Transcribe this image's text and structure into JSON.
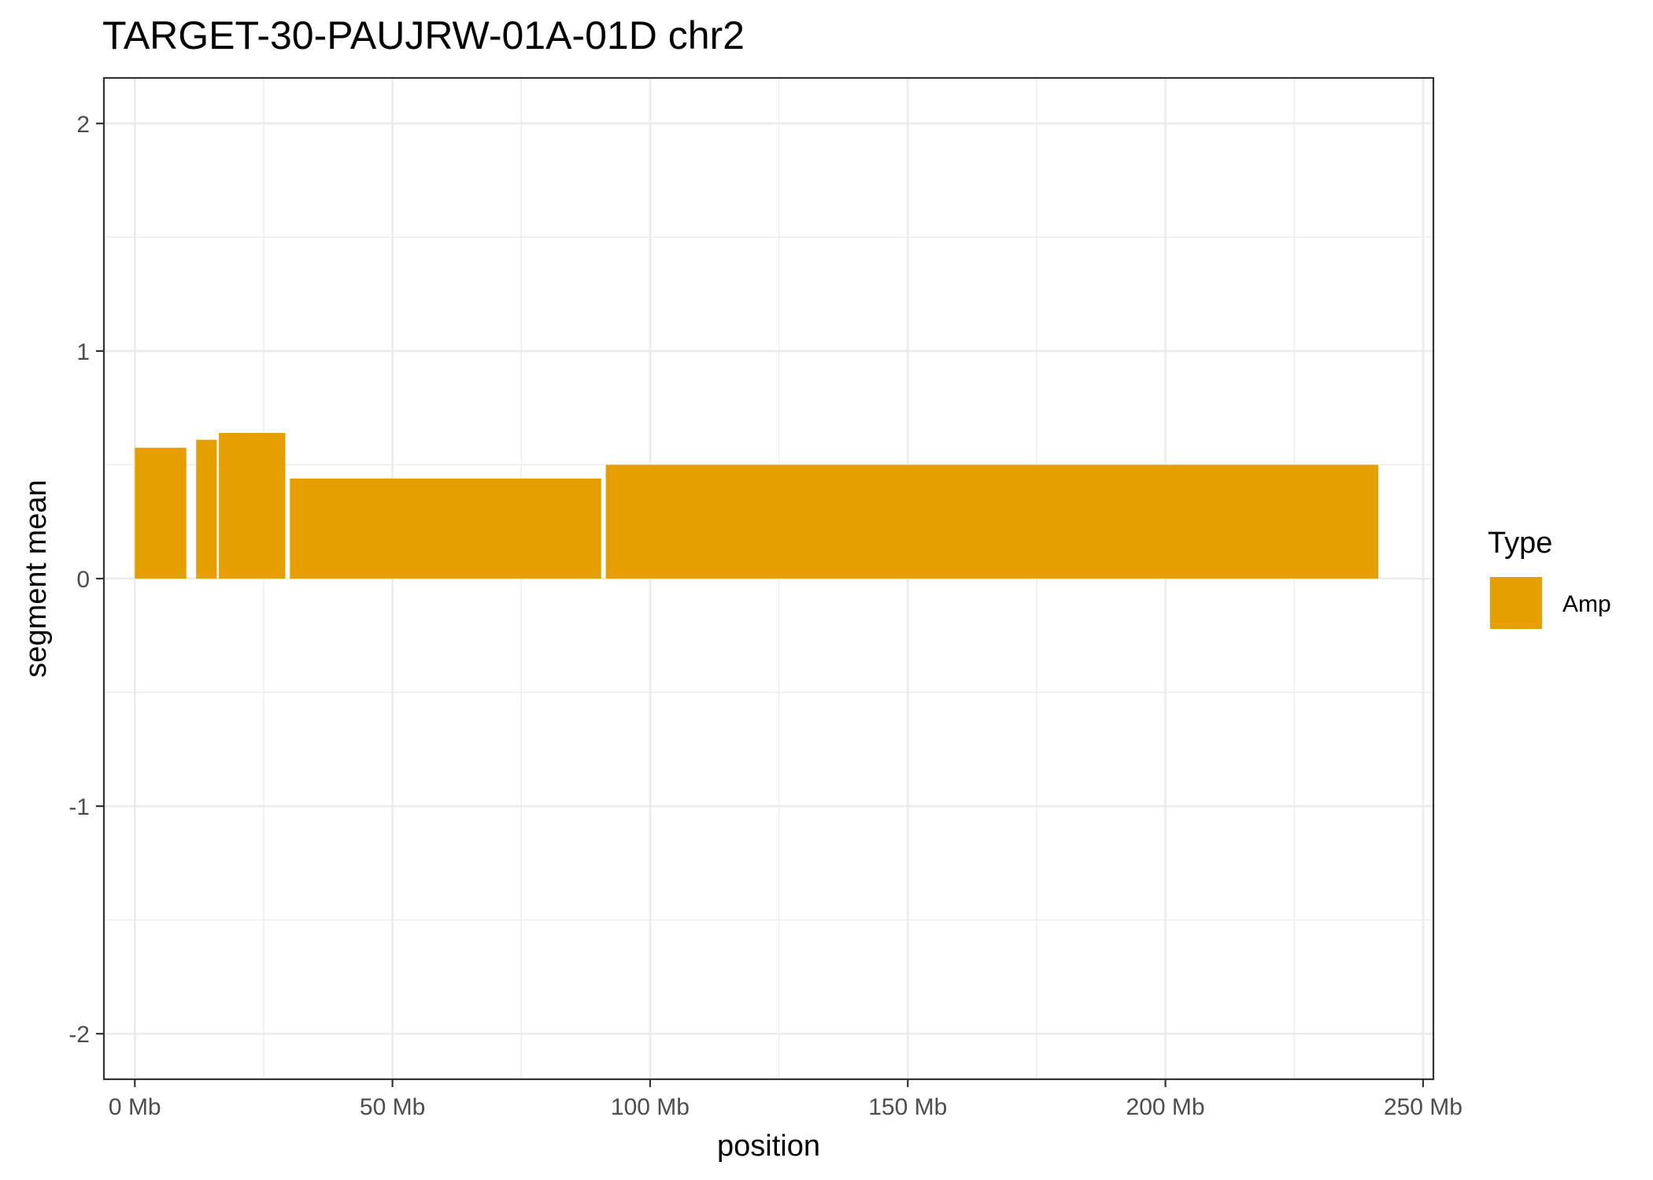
{
  "chart_data": {
    "type": "bar",
    "title": "TARGET-30-PAUJRW-01A-01D chr2",
    "xlabel": "position",
    "ylabel": "segment mean",
    "xlim": [
      -6,
      252
    ],
    "ylim": [
      -2.2,
      2.2
    ],
    "x_ticks": [
      0,
      50,
      100,
      150,
      200,
      250
    ],
    "x_tick_labels": [
      "0 Mb",
      "50 Mb",
      "100 Mb",
      "150 Mb",
      "200 Mb",
      "250 Mb"
    ],
    "y_ticks": [
      -2,
      -1,
      0,
      1,
      2
    ],
    "y_tick_labels": [
      "-2",
      "-1",
      "0",
      "1",
      "2"
    ],
    "grid": true,
    "legend": {
      "title": "Type",
      "placement": "right",
      "entries": [
        {
          "label": "Amp",
          "color": "#E69F00"
        }
      ]
    },
    "segments": [
      {
        "start": 0.0,
        "end": 10.0,
        "value": 0.575,
        "type": "Amp"
      },
      {
        "start": 11.9,
        "end": 15.9,
        "value": 0.61,
        "type": "Amp"
      },
      {
        "start": 16.3,
        "end": 29.2,
        "value": 0.64,
        "type": "Amp"
      },
      {
        "start": 30.1,
        "end": 90.5,
        "value": 0.44,
        "type": "Amp"
      },
      {
        "start": 91.4,
        "end": 241.3,
        "value": 0.5,
        "type": "Amp"
      }
    ]
  },
  "colors": {
    "amp": "#E69F00",
    "grid": "#ebebeb",
    "panel_border": "#333333",
    "tick_text": "#4d4d4d"
  }
}
